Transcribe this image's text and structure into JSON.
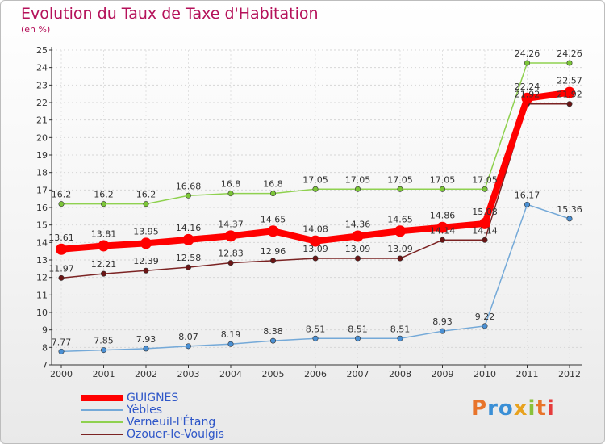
{
  "title": "Evolution du Taux de Taxe d'Habitation",
  "unit_label": "(en %)",
  "logo": {
    "text": "Proxiti",
    "colors": [
      "#e8742a",
      "#3a8fd6",
      "#3a8fd6",
      "#e8a21e",
      "#8ac13a",
      "#e8742a",
      "#e63c3c"
    ]
  },
  "chart_data": {
    "type": "line",
    "x": [
      2000,
      2001,
      2002,
      2003,
      2004,
      2005,
      2006,
      2007,
      2008,
      2009,
      2010,
      2011,
      2012
    ],
    "ylim": [
      7,
      25
    ],
    "yticks": [
      7,
      8,
      9,
      10,
      11,
      12,
      13,
      14,
      15,
      16,
      17,
      18,
      19,
      20,
      21,
      22,
      23,
      24,
      25
    ],
    "grid": true,
    "legend_position": "bottom-left",
    "series": [
      {
        "name": "Verneuil-l'Étang",
        "color": "#8fd14f",
        "marker_color": "#7cc638",
        "values": [
          16.2,
          16.2,
          16.2,
          16.68,
          16.8,
          16.8,
          17.05,
          17.05,
          17.05,
          17.05,
          17.05,
          24.26,
          24.26
        ],
        "labels": [
          "16.2",
          "16.2",
          "16.2",
          "16.68",
          "16.8",
          "16.8",
          "17.05",
          "17.05",
          "17.05",
          "17.05",
          "17.05",
          "24.26",
          "24.26"
        ]
      },
      {
        "name": "Yèbles",
        "color": "#74a9d8",
        "marker_color": "#4a90d4",
        "values": [
          7.77,
          7.85,
          7.93,
          8.07,
          8.19,
          8.38,
          8.51,
          8.51,
          8.51,
          8.93,
          9.22,
          16.17,
          15.36
        ],
        "labels": [
          "7.77",
          "7.85",
          "7.93",
          "8.07",
          "8.19",
          "8.38",
          "8.51",
          "8.51",
          "8.51",
          "8.93",
          "9.22",
          "16.17",
          "15.36"
        ]
      },
      {
        "name": "Ozouer-le-Voulgis",
        "color": "#7b2323",
        "marker_color": "#6b1515",
        "values": [
          11.97,
          12.21,
          12.39,
          12.58,
          12.83,
          12.96,
          13.09,
          13.09,
          13.09,
          14.14,
          14.14,
          21.92,
          21.92
        ],
        "labels": [
          "11.97",
          "12.21",
          "12.39",
          "12.58",
          "12.83",
          "12.96",
          "13.09",
          "13.09",
          "13.09",
          "14.14",
          "14.14",
          "21.92",
          "21.92"
        ]
      },
      {
        "name": "GUIGNES",
        "color": "#ff0000",
        "marker_color": "#ff0000",
        "values": [
          13.61,
          13.81,
          13.95,
          14.16,
          14.37,
          14.65,
          14.08,
          14.36,
          14.65,
          14.86,
          15.08,
          22.24,
          22.57
        ],
        "labels": [
          "13.61",
          "13.81",
          "13.95",
          "14.16",
          "14.37",
          "14.65",
          "14.08",
          "14.36",
          "14.65",
          "14.86",
          "15.08",
          "22.24",
          "22.57"
        ]
      }
    ],
    "legend_order": [
      "GUIGNES",
      "Yèbles",
      "Verneuil-l'Étang",
      "Ozouer-le-Voulgis"
    ]
  }
}
